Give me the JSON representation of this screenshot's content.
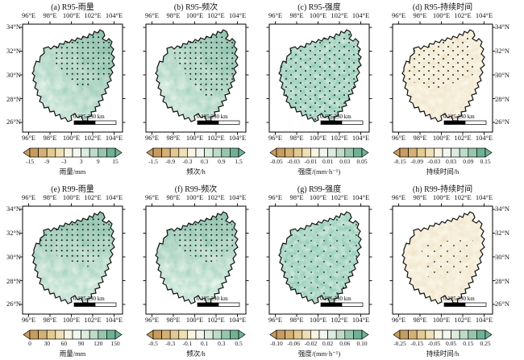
{
  "axes": {
    "lon": [
      "96°E",
      "98°E",
      "100°E",
      "102°E",
      "104°E"
    ],
    "lat": [
      "34°N",
      "32°N",
      "30°N",
      "28°N",
      "26°N"
    ]
  },
  "scalebar": {
    "label": "0 125 250 km"
  },
  "colorbar_colors": [
    "#c79c5f",
    "#d4b072",
    "#e3ca90",
    "#efe0b6",
    "#f9f5e2",
    "#f2f7ef",
    "#dcecdf",
    "#bedcc8",
    "#97c6ac",
    "#6fb194"
  ],
  "colors": {
    "negative_end": "#c79c5f",
    "positive_end": "#6fb194",
    "map_green": "#5da588",
    "map_tan": "#d6b277",
    "outline": "#111111"
  },
  "panels": [
    {
      "id": "a",
      "title": "(a) R95-雨量",
      "cb_ticks": [
        "-15",
        "-9",
        "-3",
        "3",
        "9",
        "15"
      ],
      "cb_label": "雨量/mm"
    },
    {
      "id": "b",
      "title": "(b) R95-频次",
      "cb_ticks": [
        "-1.5",
        "-0.9",
        "-0.3",
        "0.3",
        "0.9",
        "1.5"
      ],
      "cb_label": "频次/h"
    },
    {
      "id": "c",
      "title": "(c) R95-强度",
      "cb_ticks": [
        "-0.05",
        "-0.03",
        "-0.01",
        "0.01",
        "0.03",
        "0.05"
      ],
      "cb_label": "强度/(mm·h⁻¹)"
    },
    {
      "id": "d",
      "title": "(d) R95-持续时间",
      "cb_ticks": [
        "-0.15",
        "-0.09",
        "-0.03",
        "0.03",
        "0.09",
        "0.15"
      ],
      "cb_label": "持续时间/h"
    },
    {
      "id": "e",
      "title": "(e) R99-雨量",
      "cb_ticks": [
        "0",
        "30",
        "60",
        "90",
        "120",
        "150"
      ],
      "cb_label": "雨量/mm"
    },
    {
      "id": "f",
      "title": "(f) R99-频次",
      "cb_ticks": [
        "-0.5",
        "-0.3",
        "-0.1",
        "0.1",
        "0.3",
        "0.5"
      ],
      "cb_label": "频次/h"
    },
    {
      "id": "g",
      "title": "(g) R99-强度",
      "cb_ticks": [
        "-0.10",
        "-0.06",
        "-0.02",
        "0.02",
        "0.06",
        "0.10"
      ],
      "cb_label": "强度/(mm·h⁻¹)"
    },
    {
      "id": "h",
      "title": "(h) R99-持续时间",
      "cb_ticks": [
        "-0.25",
        "-0.15",
        "-0.05",
        "0.05",
        "0.15",
        "0.25"
      ],
      "cb_label": "持续时间/h"
    }
  ],
  "chart_data": [
    {
      "type": "heatmap",
      "panel": "a",
      "title": "(a) R95-雨量",
      "variable": "雨量",
      "unit": "mm",
      "colorbar_ticks": [
        -15,
        -9,
        -3,
        3,
        9,
        15
      ],
      "lon_ticks": [
        96,
        98,
        100,
        102,
        104
      ],
      "lat_ticks": [
        34,
        32,
        30,
        28,
        26
      ],
      "palette": "brown-white-green diverging",
      "pattern": "mostly positive (green), dense significance stippling over northeast half",
      "scalebar_km": [
        0,
        125,
        250
      ]
    },
    {
      "type": "heatmap",
      "panel": "b",
      "title": "(b) R95-频次",
      "variable": "频次",
      "unit": "h",
      "colorbar_ticks": [
        -1.5,
        -0.9,
        -0.3,
        0.3,
        0.9,
        1.5
      ],
      "lon_ticks": [
        96,
        98,
        100,
        102,
        104
      ],
      "lat_ticks": [
        34,
        32,
        30,
        28,
        26
      ],
      "palette": "brown-white-green diverging",
      "pattern": "positive (green) with dense stippling over north and east",
      "scalebar_km": [
        0,
        125,
        250
      ]
    },
    {
      "type": "heatmap",
      "panel": "c",
      "title": "(c) R95-强度",
      "variable": "强度",
      "unit": "mm·h⁻¹",
      "colorbar_ticks": [
        -0.05,
        -0.03,
        -0.01,
        0.01,
        0.03,
        0.05
      ],
      "lon_ticks": [
        96,
        98,
        100,
        102,
        104
      ],
      "lat_ticks": [
        34,
        32,
        30,
        28,
        26
      ],
      "palette": "brown-white-green diverging",
      "pattern": "mottled mostly positive field, scattered stippling across whole region",
      "scalebar_km": [
        0,
        125,
        250
      ]
    },
    {
      "type": "heatmap",
      "panel": "d",
      "title": "(d) R95-持续时间",
      "variable": "持续时间",
      "unit": "h",
      "colorbar_ticks": [
        -0.15,
        -0.09,
        -0.03,
        0.03,
        0.09,
        0.15
      ],
      "lon_ticks": [
        96,
        98,
        100,
        102,
        104
      ],
      "lat_ticks": [
        34,
        32,
        30,
        28,
        26
      ],
      "palette": "brown-white-green diverging",
      "pattern": "weak negative (pale tan) field, sparse stippling in northwest and centre",
      "scalebar_km": [
        0,
        125,
        250
      ]
    },
    {
      "type": "heatmap",
      "panel": "e",
      "title": "(e) R99-雨量",
      "variable": "雨量",
      "unit": "mm",
      "colorbar_ticks": [
        0,
        30,
        60,
        90,
        120,
        150
      ],
      "lon_ticks": [
        96,
        98,
        100,
        102,
        104
      ],
      "lat_ticks": [
        34,
        32,
        30,
        28,
        26
      ],
      "palette": "brown-white-green sequential",
      "pattern": "green field, dense stippling over northern band and east",
      "scalebar_km": [
        0,
        125,
        250
      ]
    },
    {
      "type": "heatmap",
      "panel": "f",
      "title": "(f) R99-频次",
      "variable": "频次",
      "unit": "h",
      "colorbar_ticks": [
        -0.5,
        -0.3,
        -0.1,
        0.1,
        0.3,
        0.5
      ],
      "lon_ticks": [
        96,
        98,
        100,
        102,
        104
      ],
      "lat_ticks": [
        34,
        32,
        30,
        28,
        26
      ],
      "palette": "brown-white-green diverging",
      "pattern": "light green field, dense stippling over northern band",
      "scalebar_km": [
        0,
        125,
        250
      ]
    },
    {
      "type": "heatmap",
      "panel": "g",
      "title": "(g) R99-强度",
      "variable": "强度",
      "unit": "mm·h⁻¹",
      "colorbar_ticks": [
        -0.1,
        -0.06,
        -0.02,
        0.02,
        0.06,
        0.1
      ],
      "lon_ticks": [
        96,
        98,
        100,
        102,
        104
      ],
      "lat_ticks": [
        34,
        32,
        30,
        28,
        26
      ],
      "palette": "brown-white-green diverging",
      "pattern": "strongly mottled positive field, sparse scattered stippling",
      "scalebar_km": [
        0,
        125,
        250
      ]
    },
    {
      "type": "heatmap",
      "panel": "h",
      "title": "(h) R99-持续时间",
      "variable": "持续时间",
      "unit": "h",
      "colorbar_ticks": [
        -0.25,
        -0.15,
        -0.05,
        0.05,
        0.15,
        0.25
      ],
      "lon_ticks": [
        96,
        98,
        100,
        102,
        104
      ],
      "lat_ticks": [
        34,
        32,
        30,
        28,
        26
      ],
      "palette": "brown-white-green diverging",
      "pattern": "weak pale tan/green mixed field, very sparse stippling",
      "scalebar_km": [
        0,
        125,
        250
      ]
    }
  ]
}
